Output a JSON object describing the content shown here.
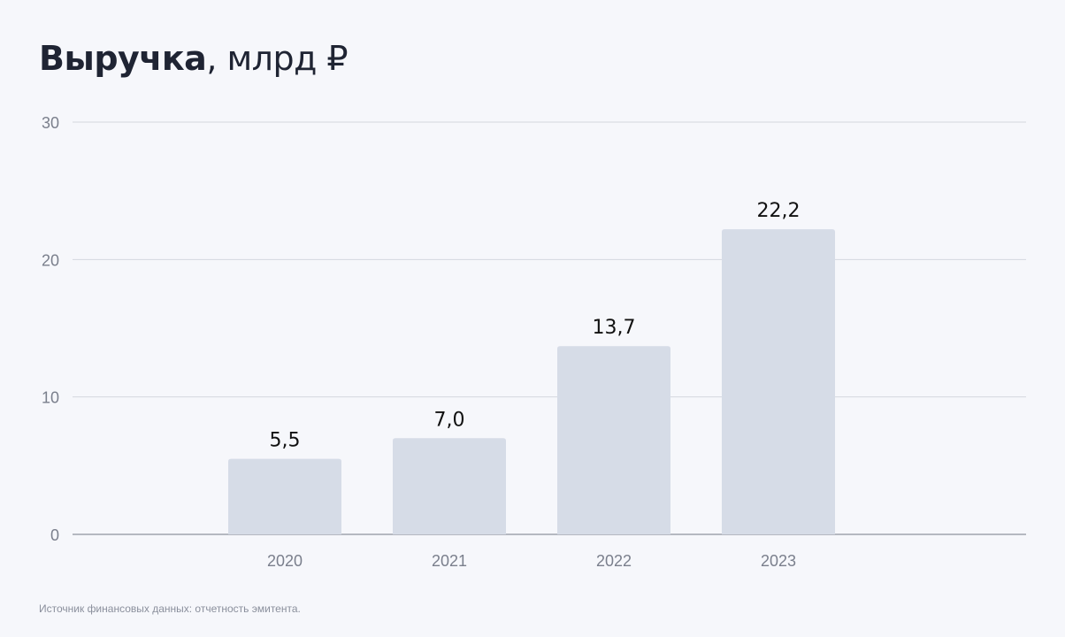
{
  "title": {
    "bold": "Выручка",
    "rest": ", млрд ₽"
  },
  "source": "Источник финансовых данных: отчетность эмитента.",
  "chart_data": {
    "type": "bar",
    "title": "Выручка, млрд ₽",
    "categories": [
      "2020",
      "2021",
      "2022",
      "2023"
    ],
    "values": [
      5.5,
      7.0,
      13.7,
      22.2
    ],
    "value_labels": [
      "5,5",
      "7,0",
      "13,7",
      "22,2"
    ],
    "ylim": [
      0,
      30
    ],
    "yticks": [
      0,
      10,
      20,
      30
    ],
    "grid": true,
    "bar_color": "#d6dce7",
    "label_color": "#111111",
    "tick_color": "#7a7f8c",
    "grid_color": "#d4d7de"
  }
}
